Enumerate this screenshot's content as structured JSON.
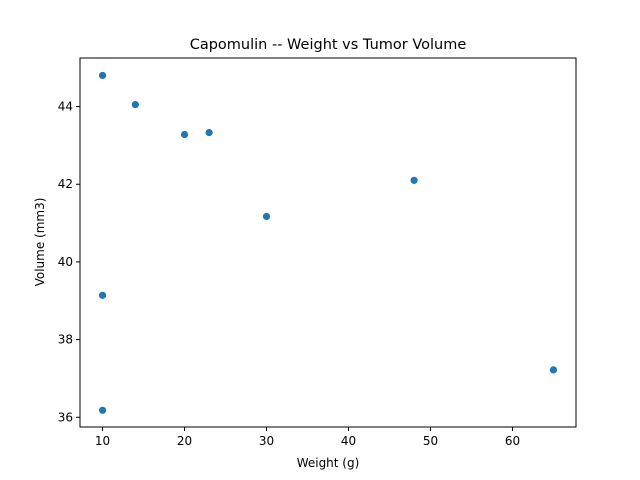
{
  "chart_data": {
    "type": "scatter",
    "title": "Capomulin -- Weight vs Tumor Volume",
    "xlabel": "Weight (g)",
    "ylabel": "Volume (mm3)",
    "xlim": [
      7.25,
      67.75
    ],
    "ylim": [
      35.75,
      45.25
    ],
    "x_ticks": [
      10,
      20,
      30,
      40,
      50,
      60
    ],
    "y_ticks": [
      36,
      38,
      40,
      42,
      44
    ],
    "grid": false,
    "legend": "none",
    "marker_color": "#1f77b4",
    "points": [
      {
        "x": 10,
        "y": 44.8
      },
      {
        "x": 14,
        "y": 44.05
      },
      {
        "x": 20,
        "y": 43.28
      },
      {
        "x": 23,
        "y": 43.33
      },
      {
        "x": 48,
        "y": 42.1
      },
      {
        "x": 30,
        "y": 41.17
      },
      {
        "x": 10,
        "y": 39.14
      },
      {
        "x": 65,
        "y": 37.22
      },
      {
        "x": 10,
        "y": 36.18
      }
    ]
  }
}
